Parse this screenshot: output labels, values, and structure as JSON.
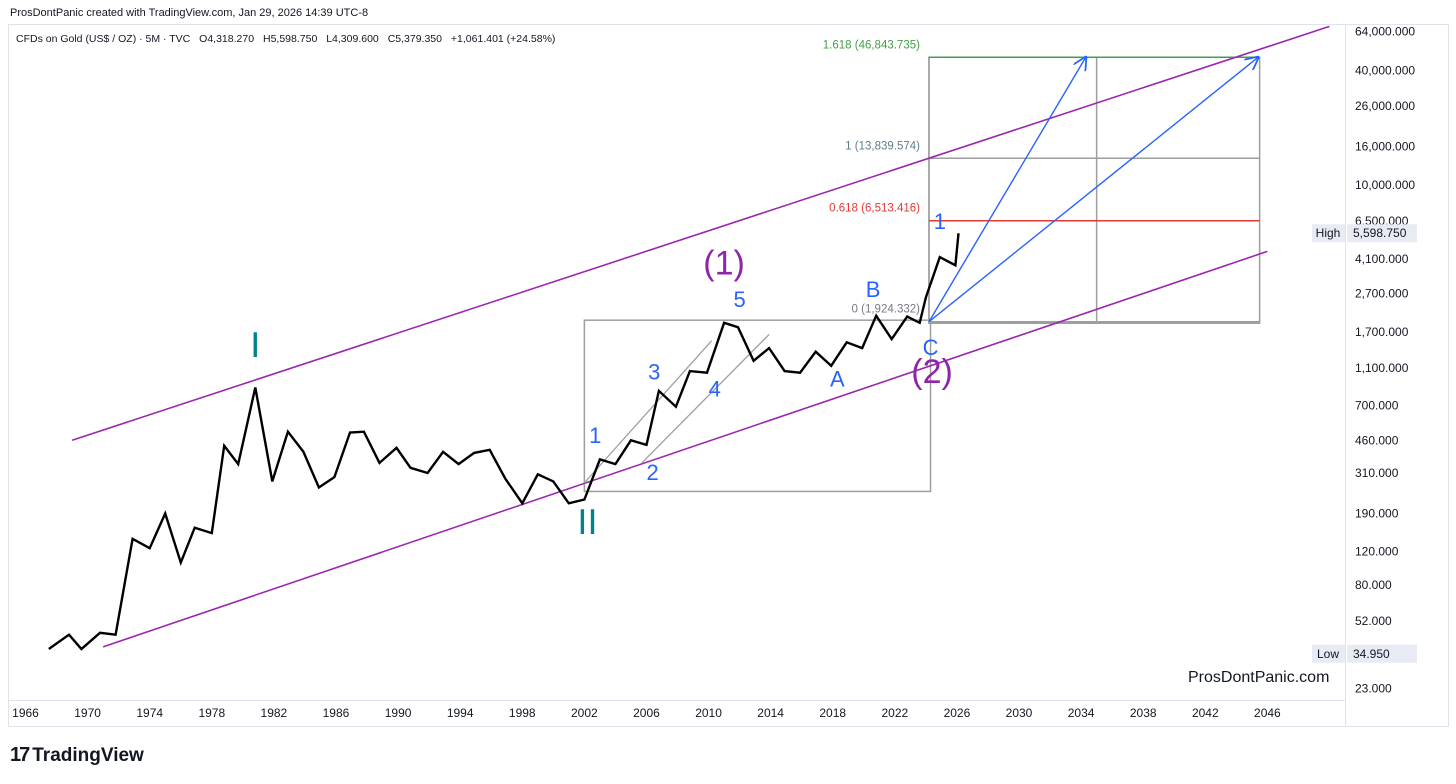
{
  "header": {
    "credit": "ProsDontPanic created with TradingView.com, Jan 29, 2026 14:39 UTC-8",
    "symbol": "CFDs on Gold (US$ / OZ) · 5M · TVC",
    "open": "O4,318.270",
    "high": "H5,598.750",
    "low": "L4,309.600",
    "close": "C5,379.350",
    "change": "+1,061.401 (+24.58%)"
  },
  "watermark": "ProsDontPanic.com",
  "logo": {
    "mark": "17",
    "text": "TradingView"
  },
  "colors": {
    "price": "#000000",
    "channel": "#9c27b0",
    "wave_blue": "#2962ff",
    "wave_teal": "#00838f",
    "wave_purple": "#8e24aa",
    "fib_green": "#43a047",
    "fib_gray": "#607d8b",
    "fib_red": "#e53935",
    "box": "#9e9e9e"
  },
  "chart_data": {
    "type": "line",
    "scale": "log",
    "title": "CFDs on Gold (US$ / OZ) · 5M · TVC",
    "x_range": [
      1965,
      2051
    ],
    "y_range": [
      20,
      70000
    ],
    "x_ticks": [
      "1966",
      "1970",
      "1974",
      "1978",
      "1982",
      "1986",
      "1990",
      "1994",
      "1998",
      "2002",
      "2006",
      "2010",
      "2014",
      "2018",
      "2022",
      "2026",
      "2030",
      "2034",
      "2038",
      "2042",
      "2046"
    ],
    "y_ticks": [
      {
        "value": 64000,
        "label": "64,000.000"
      },
      {
        "value": 40000,
        "label": "40,000.000"
      },
      {
        "value": 26000,
        "label": "26,000.000"
      },
      {
        "value": 16000,
        "label": "16,000.000"
      },
      {
        "value": 10000,
        "label": "10,000.000"
      },
      {
        "value": 6500,
        "label": "6,500.000"
      },
      {
        "value": 4100,
        "label": "4,100.000"
      },
      {
        "value": 2700,
        "label": "2,700.000"
      },
      {
        "value": 1700,
        "label": "1,700.000"
      },
      {
        "value": 1100,
        "label": "1,100.000"
      },
      {
        "value": 700,
        "label": "700.000"
      },
      {
        "value": 460,
        "label": "460.000"
      },
      {
        "value": 310,
        "label": "310.000"
      },
      {
        "value": 190,
        "label": "190.000"
      },
      {
        "value": 120,
        "label": "120.000"
      },
      {
        "value": 80,
        "label": "80.000"
      },
      {
        "value": 52,
        "label": "52.000"
      },
      {
        "value": 23,
        "label": "23.000"
      }
    ],
    "series": [
      {
        "name": "Gold (5M)",
        "points": [
          [
            1967.5,
            37
          ],
          [
            1968.8,
            44
          ],
          [
            1969.6,
            37
          ],
          [
            1970.8,
            45
          ],
          [
            1971.8,
            44
          ],
          [
            1972.9,
            140
          ],
          [
            1974.0,
            125
          ],
          [
            1975.0,
            190
          ],
          [
            1976.0,
            105
          ],
          [
            1976.9,
            160
          ],
          [
            1978.0,
            150
          ],
          [
            1978.8,
            430
          ],
          [
            1979.7,
            345
          ],
          [
            1980.8,
            870
          ],
          [
            1981.9,
            280
          ],
          [
            1982.9,
            510
          ],
          [
            1983.9,
            400
          ],
          [
            1984.9,
            260
          ],
          [
            1985.9,
            295
          ],
          [
            1986.9,
            505
          ],
          [
            1987.8,
            510
          ],
          [
            1988.8,
            350
          ],
          [
            1989.9,
            420
          ],
          [
            1990.8,
            330
          ],
          [
            1991.9,
            310
          ],
          [
            1992.9,
            400
          ],
          [
            1993.9,
            345
          ],
          [
            1994.9,
            395
          ],
          [
            1995.9,
            410
          ],
          [
            1996.9,
            290
          ],
          [
            1998.0,
            215
          ],
          [
            1999.0,
            305
          ],
          [
            2000.0,
            280
          ],
          [
            2001.0,
            215
          ],
          [
            2002.0,
            225
          ],
          [
            2003.0,
            365
          ],
          [
            2004.0,
            345
          ],
          [
            2005.0,
            460
          ],
          [
            2006.0,
            435
          ],
          [
            2006.8,
            835
          ],
          [
            2007.9,
            690
          ],
          [
            2008.8,
            1060
          ],
          [
            2009.9,
            1040
          ],
          [
            2011.0,
            1900
          ],
          [
            2011.9,
            1800
          ],
          [
            2012.9,
            1200
          ],
          [
            2013.9,
            1400
          ],
          [
            2014.9,
            1060
          ],
          [
            2015.9,
            1040
          ],
          [
            2016.9,
            1340
          ],
          [
            2017.9,
            1130
          ],
          [
            2018.9,
            1500
          ],
          [
            2019.9,
            1400
          ],
          [
            2020.8,
            2070
          ],
          [
            2021.8,
            1560
          ],
          [
            2022.8,
            2050
          ],
          [
            2023.6,
            1900
          ],
          [
            2024.0,
            2580
          ],
          [
            2024.9,
            4200
          ],
          [
            2025.9,
            3800
          ],
          [
            2026.1,
            5598.75
          ]
        ]
      }
    ],
    "channel": {
      "upper": {
        "from": [
          1969.0,
          460
        ],
        "to": [
          2050.0,
          68000
        ]
      },
      "lower": {
        "from": [
          1971.0,
          38
        ],
        "to": [
          2046.0,
          4500
        ]
      }
    },
    "fib": [
      {
        "ratio": "1.618",
        "value": 46843.735,
        "label": "1.618 (46,843.735)"
      },
      {
        "ratio": "1",
        "value": 13839.574,
        "label": "1 (13,839.574)"
      },
      {
        "ratio": "0.618",
        "value": 6513.416,
        "label": "0.618 (6,513.416)"
      },
      {
        "ratio": "0",
        "value": 1924.332,
        "label": "0 (1,924.332)"
      }
    ],
    "targets": [
      {
        "from": [
          2024.2,
          1924.332
        ],
        "to": [
          2034.3,
          46843.735
        ]
      },
      {
        "from": [
          2024.2,
          1924.332
        ],
        "to": [
          2045.4,
          46843.735
        ]
      }
    ],
    "boxes": [
      {
        "x": [
          2002.0,
          2024.3
        ],
        "y": [
          248,
          1960
        ]
      },
      {
        "x": [
          2024.2,
          2045.5
        ],
        "y": [
          1890,
          46843.735
        ]
      },
      {
        "x": [
          2024.2,
          2035.0
        ],
        "y": [
          1890,
          46843.735
        ]
      }
    ],
    "subchannel": [
      {
        "from": [
          2002.0,
          275
        ],
        "to": [
          2010.2,
          1530
        ]
      },
      {
        "from": [
          2005.7,
          350
        ],
        "to": [
          2013.9,
          1650
        ]
      }
    ],
    "wave_labels": [
      {
        "text": "I",
        "x": 1980.8,
        "y": 1260,
        "color": "teal"
      },
      {
        "text": "II",
        "x": 2002.2,
        "y": 148,
        "color": "teal"
      },
      {
        "text": "(1)",
        "x": 2011.0,
        "y": 3400,
        "color": "purple"
      },
      {
        "text": "(2)",
        "x": 2024.4,
        "y": 920,
        "color": "purple"
      },
      {
        "text": "1",
        "x": 2002.7,
        "y": 445,
        "color": "blue"
      },
      {
        "text": "2",
        "x": 2006.4,
        "y": 285,
        "color": "blue"
      },
      {
        "text": "3",
        "x": 2006.5,
        "y": 960,
        "color": "blue"
      },
      {
        "text": "4",
        "x": 2010.4,
        "y": 780,
        "color": "blue"
      },
      {
        "text": "5",
        "x": 2012.0,
        "y": 2300,
        "color": "blue"
      },
      {
        "text": "A",
        "x": 2018.3,
        "y": 880,
        "color": "blue"
      },
      {
        "text": "B",
        "x": 2020.6,
        "y": 2600,
        "color": "blue"
      },
      {
        "text": "C",
        "x": 2024.3,
        "y": 1290,
        "color": "blue"
      },
      {
        "text": "1",
        "x": 2024.9,
        "y": 5900,
        "color": "blue"
      }
    ],
    "price_labels": [
      {
        "name": "High",
        "value": 5598.75,
        "display": "5,598.750"
      },
      {
        "name": "Low",
        "value": 34.95,
        "display": "34.950"
      }
    ]
  }
}
